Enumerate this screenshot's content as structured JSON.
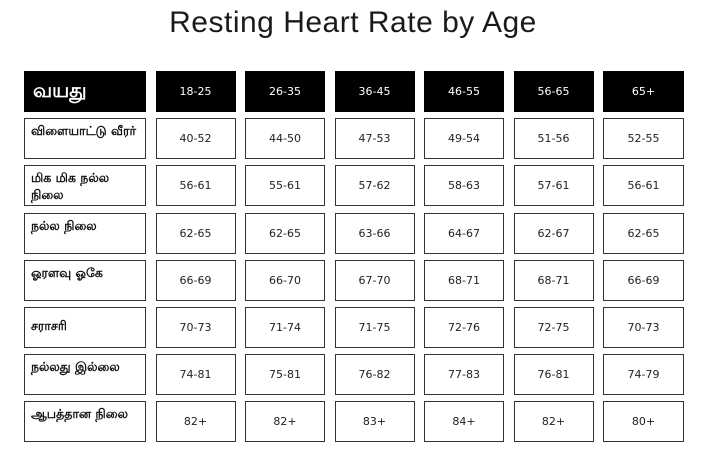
{
  "title": "Resting Heart Rate by Age",
  "table": {
    "corner": "வயது",
    "age_groups": [
      "18-25",
      "26-35",
      "36-45",
      "46-55",
      "56-65",
      "65+"
    ],
    "rows": [
      {
        "label": "விளையாட்டு வீரர்",
        "values": [
          "40-52",
          "44-50",
          "47-53",
          "49-54",
          "51-56",
          "52-55"
        ]
      },
      {
        "label": "மிக மிக நல்ல நிலை",
        "values": [
          "56-61",
          "55-61",
          "57-62",
          "58-63",
          "57-61",
          "56-61"
        ]
      },
      {
        "label": "நல்ல நிலை",
        "values": [
          "62-65",
          "62-65",
          "63-66",
          "64-67",
          "62-67",
          "62-65"
        ]
      },
      {
        "label": "ஓரளவு ஓகே",
        "values": [
          "66-69",
          "66-70",
          "67-70",
          "68-71",
          "68-71",
          "66-69"
        ]
      },
      {
        "label": "சராசரி",
        "values": [
          "70-73",
          "71-74",
          "71-75",
          "72-76",
          "72-75",
          "70-73"
        ]
      },
      {
        "label": "நல்லது இல்லை",
        "values": [
          "74-81",
          "75-81",
          "76-82",
          "77-83",
          "76-81",
          "74-79"
        ]
      },
      {
        "label": "ஆபத்தான நிலை",
        "values": [
          "82+",
          "82+",
          "83+",
          "84+",
          "82+",
          "80+"
        ]
      }
    ]
  }
}
